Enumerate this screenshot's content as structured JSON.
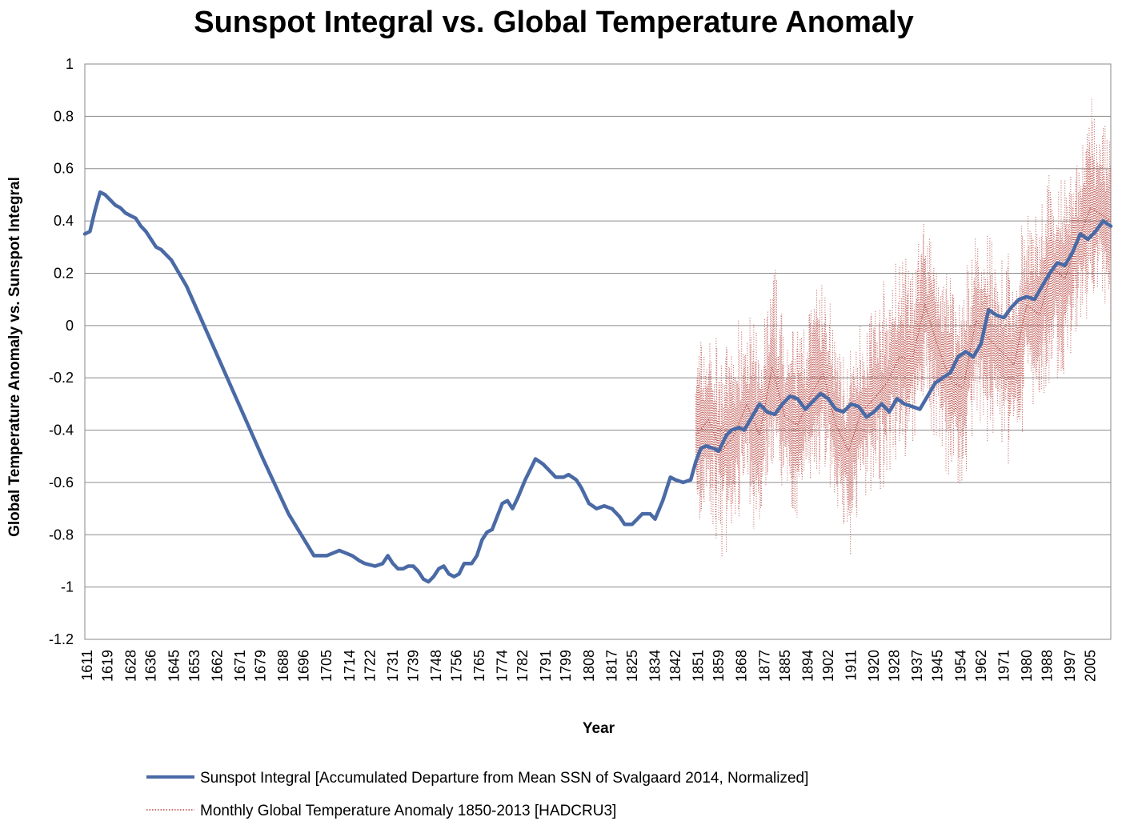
{
  "chart_data": {
    "type": "line",
    "title": "Sunspot Integral vs. Global Temperature Anomaly",
    "xlabel": "Year",
    "ylabel": "Global Temperature Anomaly vs. Sunspot Integral",
    "ylim": [
      -1.2,
      1
    ],
    "xlim": [
      1610,
      2013
    ],
    "yticks": [
      "1",
      "0.8",
      "0.6",
      "0.4",
      "0.2",
      "0",
      "-0.2",
      "-0.4",
      "-0.6",
      "-0.8",
      "-1",
      "-1.2"
    ],
    "xticks": [
      "1611",
      "1619",
      "1628",
      "1636",
      "1645",
      "1653",
      "1662",
      "1671",
      "1679",
      "1688",
      "1696",
      "1705",
      "1714",
      "1722",
      "1731",
      "1739",
      "1748",
      "1756",
      "1765",
      "1774",
      "1782",
      "1791",
      "1799",
      "1808",
      "1817",
      "1825",
      "1834",
      "1842",
      "1851",
      "1859",
      "1868",
      "1877",
      "1885",
      "1894",
      "1902",
      "1911",
      "1920",
      "1928",
      "1937",
      "1945",
      "1954",
      "1962",
      "1971",
      "1980",
      "1988",
      "1997",
      "2005"
    ],
    "grid": true,
    "legend_position": "bottom",
    "series": [
      {
        "name": "Sunspot Integral [Accumulated Departure  from Mean  SSN of Svalgaard 2014, Normalized]",
        "style": "solid",
        "color": "#4a6aa6",
        "x": [
          1610,
          1612,
          1614,
          1616,
          1618,
          1620,
          1622,
          1624,
          1626,
          1628,
          1630,
          1632,
          1634,
          1636,
          1638,
          1640,
          1642,
          1644,
          1650,
          1660,
          1670,
          1680,
          1690,
          1700,
          1705,
          1710,
          1715,
          1718,
          1720,
          1724,
          1727,
          1729,
          1731,
          1733,
          1735,
          1737,
          1739,
          1741,
          1743,
          1745,
          1747,
          1749,
          1751,
          1753,
          1755,
          1757,
          1759,
          1762,
          1764,
          1766,
          1768,
          1770,
          1772,
          1774,
          1776,
          1778,
          1780,
          1783,
          1785,
          1787,
          1790,
          1792,
          1795,
          1798,
          1800,
          1803,
          1805,
          1808,
          1811,
          1814,
          1817,
          1820,
          1822,
          1825,
          1827,
          1829,
          1832,
          1834,
          1837,
          1840,
          1842,
          1845,
          1848,
          1850,
          1852,
          1854,
          1857,
          1859,
          1862,
          1864,
          1867,
          1869,
          1872,
          1875,
          1878,
          1881,
          1884,
          1887,
          1890,
          1893,
          1896,
          1899,
          1902,
          1905,
          1908,
          1911,
          1914,
          1917,
          1920,
          1923,
          1926,
          1929,
          1932,
          1935,
          1938,
          1941,
          1944,
          1947,
          1950,
          1953,
          1956,
          1959,
          1962,
          1965,
          1968,
          1971,
          1974,
          1977,
          1980,
          1983,
          1986,
          1989,
          1992,
          1995,
          1998,
          2001,
          2004,
          2007,
          2010,
          2013
        ],
        "y": [
          0.35,
          0.36,
          0.44,
          0.51,
          0.5,
          0.48,
          0.46,
          0.45,
          0.43,
          0.42,
          0.41,
          0.38,
          0.36,
          0.33,
          0.3,
          0.29,
          0.27,
          0.25,
          0.15,
          -0.07,
          -0.29,
          -0.51,
          -0.72,
          -0.88,
          -0.88,
          -0.86,
          -0.88,
          -0.9,
          -0.91,
          -0.92,
          -0.91,
          -0.88,
          -0.91,
          -0.93,
          -0.93,
          -0.92,
          -0.92,
          -0.94,
          -0.97,
          -0.98,
          -0.96,
          -0.93,
          -0.92,
          -0.95,
          -0.96,
          -0.95,
          -0.91,
          -0.91,
          -0.88,
          -0.82,
          -0.79,
          -0.78,
          -0.73,
          -0.68,
          -0.67,
          -0.7,
          -0.66,
          -0.59,
          -0.55,
          -0.51,
          -0.53,
          -0.55,
          -0.58,
          -0.58,
          -0.57,
          -0.59,
          -0.62,
          -0.68,
          -0.7,
          -0.69,
          -0.7,
          -0.73,
          -0.76,
          -0.76,
          -0.74,
          -0.72,
          -0.72,
          -0.74,
          -0.67,
          -0.58,
          -0.59,
          -0.6,
          -0.59,
          -0.52,
          -0.47,
          -0.46,
          -0.47,
          -0.48,
          -0.42,
          -0.4,
          -0.39,
          -0.4,
          -0.35,
          -0.3,
          -0.33,
          -0.34,
          -0.3,
          -0.27,
          -0.28,
          -0.32,
          -0.29,
          -0.26,
          -0.28,
          -0.32,
          -0.33,
          -0.3,
          -0.31,
          -0.35,
          -0.33,
          -0.3,
          -0.33,
          -0.28,
          -0.3,
          -0.31,
          -0.32,
          -0.27,
          -0.22,
          -0.2,
          -0.18,
          -0.12,
          -0.1,
          -0.12,
          -0.07,
          0.06,
          0.04,
          0.03,
          0.07,
          0.1,
          0.11,
          0.1,
          0.15,
          0.2,
          0.24,
          0.23,
          0.28,
          0.35,
          0.33,
          0.36,
          0.4,
          0.38
        ]
      },
      {
        "name": "Monthly Global Temperature  Anomaly 1850-2013  [HADCRU3]",
        "style": "dotted",
        "color": "#b5403a",
        "x": [
          1850,
          1855,
          1860,
          1865,
          1870,
          1875,
          1880,
          1885,
          1890,
          1895,
          1900,
          1905,
          1910,
          1915,
          1920,
          1925,
          1930,
          1935,
          1940,
          1945,
          1950,
          1955,
          1960,
          1965,
          1970,
          1975,
          1980,
          1985,
          1990,
          1995,
          2000,
          2005,
          2010,
          2013
        ],
        "y": [
          -0.42,
          -0.36,
          -0.48,
          -0.42,
          -0.3,
          -0.42,
          -0.16,
          -0.35,
          -0.38,
          -0.27,
          -0.18,
          -0.38,
          -0.48,
          -0.33,
          -0.28,
          -0.22,
          -0.12,
          -0.13,
          0.08,
          -0.08,
          -0.21,
          -0.24,
          0.02,
          -0.05,
          -0.1,
          -0.15,
          0.08,
          0.04,
          0.22,
          0.18,
          0.32,
          0.45,
          0.42,
          0.4
        ]
      }
    ]
  }
}
